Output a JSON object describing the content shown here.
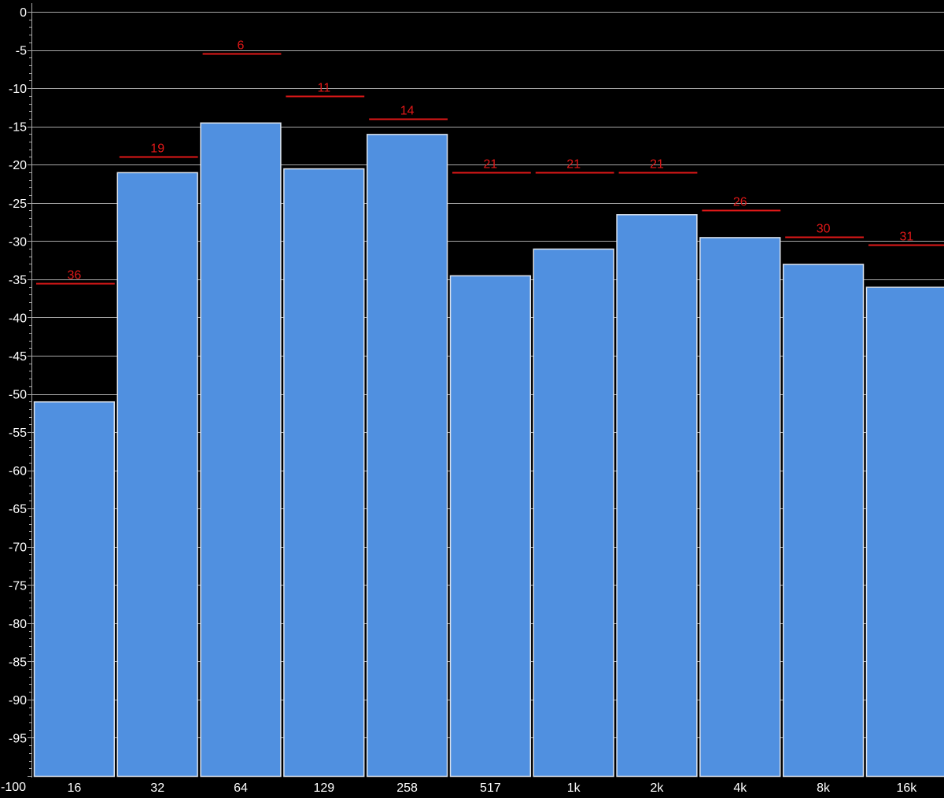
{
  "chart_data": {
    "type": "bar",
    "categories": [
      "16",
      "32",
      "64",
      "129",
      "258",
      "517",
      "1k",
      "2k",
      "4k",
      "8k",
      "16k"
    ],
    "values": [
      -51,
      -21,
      -14.5,
      -20.5,
      -16,
      -34.5,
      -31,
      -26.5,
      -29.5,
      -33,
      -36
    ],
    "peaks": [
      -35.5,
      -19,
      -5.5,
      -11,
      -14,
      -21,
      -21,
      -21,
      -26,
      -29.5,
      -30.5
    ],
    "peak_labels": [
      "36",
      "19",
      "6",
      "11",
      "14",
      "21",
      "21",
      "21",
      "26",
      "30",
      "31"
    ],
    "y_ticks": [
      0,
      -5,
      -10,
      -15,
      -20,
      -25,
      -30,
      -35,
      -40,
      -45,
      -50,
      -55,
      -60,
      -65,
      -70,
      -75,
      -80,
      -85,
      -90,
      -95,
      -100
    ],
    "y_tick_labels": [
      "0",
      "-5",
      "-10",
      "-15",
      "-20",
      "-25",
      "-30",
      "-35",
      "-40",
      "-45",
      "-50",
      "-55",
      "-60",
      "-65",
      "-70",
      "-75",
      "-80",
      "-85",
      "-90",
      "-95",
      "-100"
    ],
    "ylim": [
      -100,
      0
    ],
    "grid": true,
    "colors": {
      "background": "#000000",
      "bar": "#5090e0",
      "bar_border": "#dde4ee",
      "peak": "#e01818",
      "grid": "#a8a8a8",
      "axis_text": "#ffffff"
    }
  }
}
